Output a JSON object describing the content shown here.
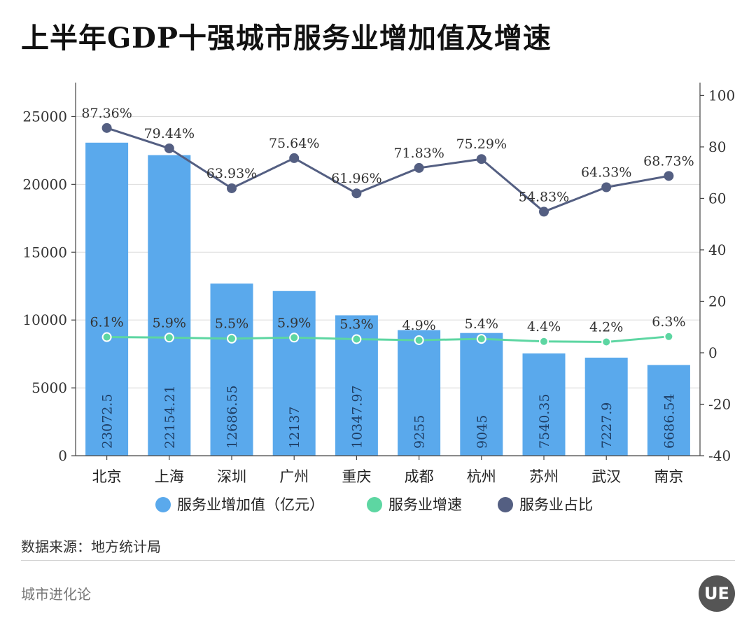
{
  "title": "上半年GDP十强城市服务业增加值及增速",
  "source": "数据来源：地方统计局",
  "brand": "城市进化论",
  "logo_text": "UE",
  "colors": {
    "bar": "#5aa9ec",
    "growth": "#5dd6a2",
    "share": "#545f82",
    "grid": "#dcdcdc",
    "axis": "#444444"
  },
  "chart_data": {
    "type": "bar",
    "categories": [
      "北京",
      "上海",
      "深圳",
      "广州",
      "重庆",
      "成都",
      "杭州",
      "苏州",
      "武汉",
      "南京"
    ],
    "series": [
      {
        "name": "服务业增加值（亿元）",
        "type": "bar",
        "axis": "left",
        "values": [
          23072.5,
          22154.21,
          12686.55,
          12137,
          10347.97,
          9255,
          9045,
          7540.35,
          7227.9,
          6686.54
        ],
        "labels": [
          "23072.5",
          "22154.21",
          "12686.55",
          "12137",
          "10347.97",
          "9255",
          "9045",
          "7540.35",
          "7227.9",
          "6686.54"
        ]
      },
      {
        "name": "服务业增速",
        "type": "line",
        "axis": "right",
        "values": [
          6.1,
          5.9,
          5.5,
          5.9,
          5.3,
          4.9,
          5.4,
          4.4,
          4.2,
          6.3
        ],
        "labels": [
          "6.1%",
          "5.9%",
          "5.5%",
          "5.9%",
          "5.3%",
          "4.9%",
          "5.4%",
          "4.4%",
          "4.2%",
          "6.3%"
        ]
      },
      {
        "name": "服务业占比",
        "type": "line",
        "axis": "right",
        "values": [
          87.36,
          79.44,
          63.93,
          75.64,
          61.96,
          71.83,
          75.29,
          54.83,
          64.33,
          68.73
        ],
        "labels": [
          "87.36%",
          "79.44%",
          "63.93%",
          "75.64%",
          "61.96%",
          "71.83%",
          "75.29%",
          "54.83%",
          "64.33%",
          "68.73%"
        ]
      }
    ],
    "y_left": {
      "ylim": [
        0,
        27500
      ],
      "ticks": [
        0,
        5000,
        10000,
        15000,
        20000,
        25000
      ],
      "tick_labels": [
        "0",
        "5000",
        "10000",
        "15000",
        "20000",
        "25000"
      ]
    },
    "y_right": {
      "ylim": [
        -40,
        105
      ],
      "ticks": [
        -40,
        -20,
        0,
        20,
        40,
        60,
        80,
        100
      ],
      "tick_labels": [
        "-40",
        "-20",
        "0",
        "20",
        "40",
        "60",
        "80",
        "100"
      ]
    },
    "grid": true,
    "legend_position": "bottom"
  }
}
